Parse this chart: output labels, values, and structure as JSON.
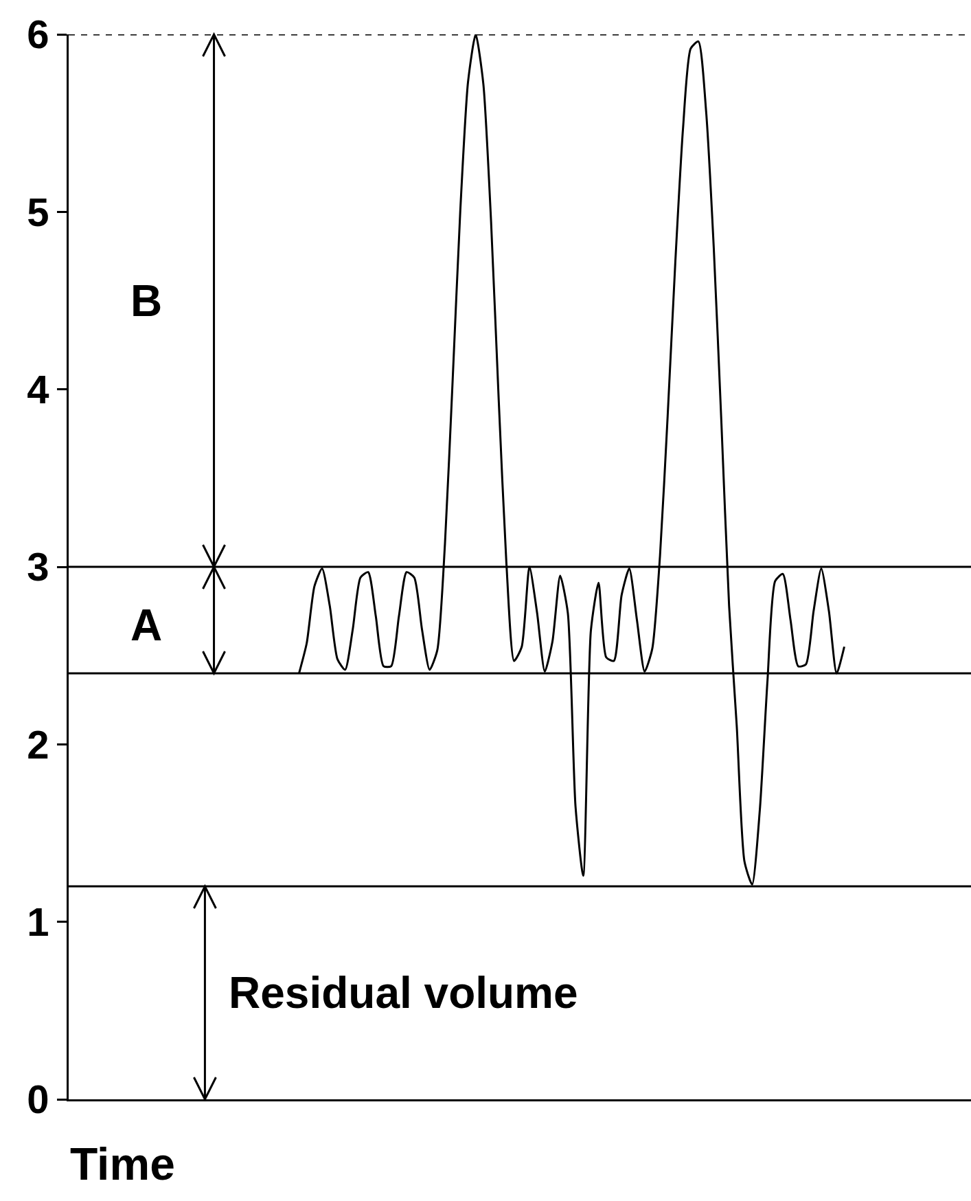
{
  "chart_data": {
    "type": "line",
    "xlabel": "Time",
    "categories": [
      null,
      null,
      null,
      null,
      null,
      null,
      null,
      null,
      null,
      null,
      null,
      null,
      null,
      null,
      null,
      null,
      null,
      null,
      null,
      null,
      null,
      null,
      null,
      null,
      null,
      null,
      null,
      null,
      null,
      null,
      null,
      null,
      null,
      null,
      null,
      null,
      null,
      null,
      null,
      null,
      null,
      null,
      null,
      null,
      null,
      null,
      null,
      null,
      null,
      null,
      null,
      null,
      null,
      null,
      null,
      null,
      null,
      null,
      null,
      null,
      null,
      null,
      null,
      null,
      null,
      null,
      null,
      null,
      null,
      null,
      null,
      null,
      null,
      null,
      null,
      null,
      null,
      null,
      null,
      null,
      null,
      null,
      null,
      null,
      null,
      null,
      null,
      null,
      null,
      null,
      null,
      null,
      null,
      null,
      null,
      null,
      null,
      null,
      null,
      null,
      null,
      null,
      null,
      null,
      null,
      null,
      null,
      null,
      null,
      null,
      null,
      null,
      null,
      null,
      null,
      null,
      null,
      null
    ],
    "series": [
      {
        "color": "#000000",
        "values": [
          null,
          null,
          null,
          null,
          null,
          null,
          null,
          null,
          null,
          null,
          null,
          null,
          null,
          null,
          null,
          null,
          null,
          null,
          null,
          null,
          null,
          null,
          null,
          null,
          null,
          null,
          null,
          null,
          null,
          null,
          2.4,
          2.57,
          2.89,
          2.99,
          2.78,
          2.48,
          2.42,
          2.65,
          2.94,
          2.97,
          2.72,
          2.44,
          2.44,
          2.72,
          2.97,
          2.94,
          2.65,
          2.42,
          2.53,
          3.13,
          4.05,
          5.01,
          5.73,
          6,
          5.72,
          4.95,
          3.94,
          3.02,
          2.47,
          2.55,
          3,
          2.74,
          2.41,
          2.58,
          2.95,
          2.74,
          1.65,
          1.26,
          2.64,
          2.91,
          2.49,
          2.47,
          2.84,
          2.99,
          2.7,
          2.41,
          2.54,
          3.06,
          3.85,
          4.72,
          5.47,
          5.92,
          5.96,
          5.57,
          4.8,
          3.81,
          2.78,
          2.1,
          1.34,
          1.21,
          1.63,
          2.36,
          2.92,
          2.96,
          2.7,
          2.44,
          2.45,
          2.75,
          2.99,
          2.75,
          2.4,
          2.55,
          null,
          null,
          null,
          null,
          null,
          null,
          null,
          null,
          null,
          null,
          null,
          null,
          null,
          null,
          null,
          null
        ]
      }
    ],
    "ylim": [
      0,
      6
    ],
    "yticks": [
      0,
      1,
      2,
      3,
      4,
      5,
      6
    ],
    "grid": false,
    "tick_labels": "y",
    "line_style": "solid",
    "ref_lines": [
      {
        "axis": "y",
        "value": 6,
        "line_style": "dashed",
        "color": "#000000"
      },
      {
        "axis": "y",
        "value": 3,
        "color": "#000000"
      },
      {
        "axis": "y",
        "value": 2.4,
        "color": "#000000"
      },
      {
        "axis": "y",
        "value": 1.2,
        "color": "#000000"
      }
    ],
    "annotations": [
      "B",
      "A",
      "Residual volume"
    ]
  }
}
